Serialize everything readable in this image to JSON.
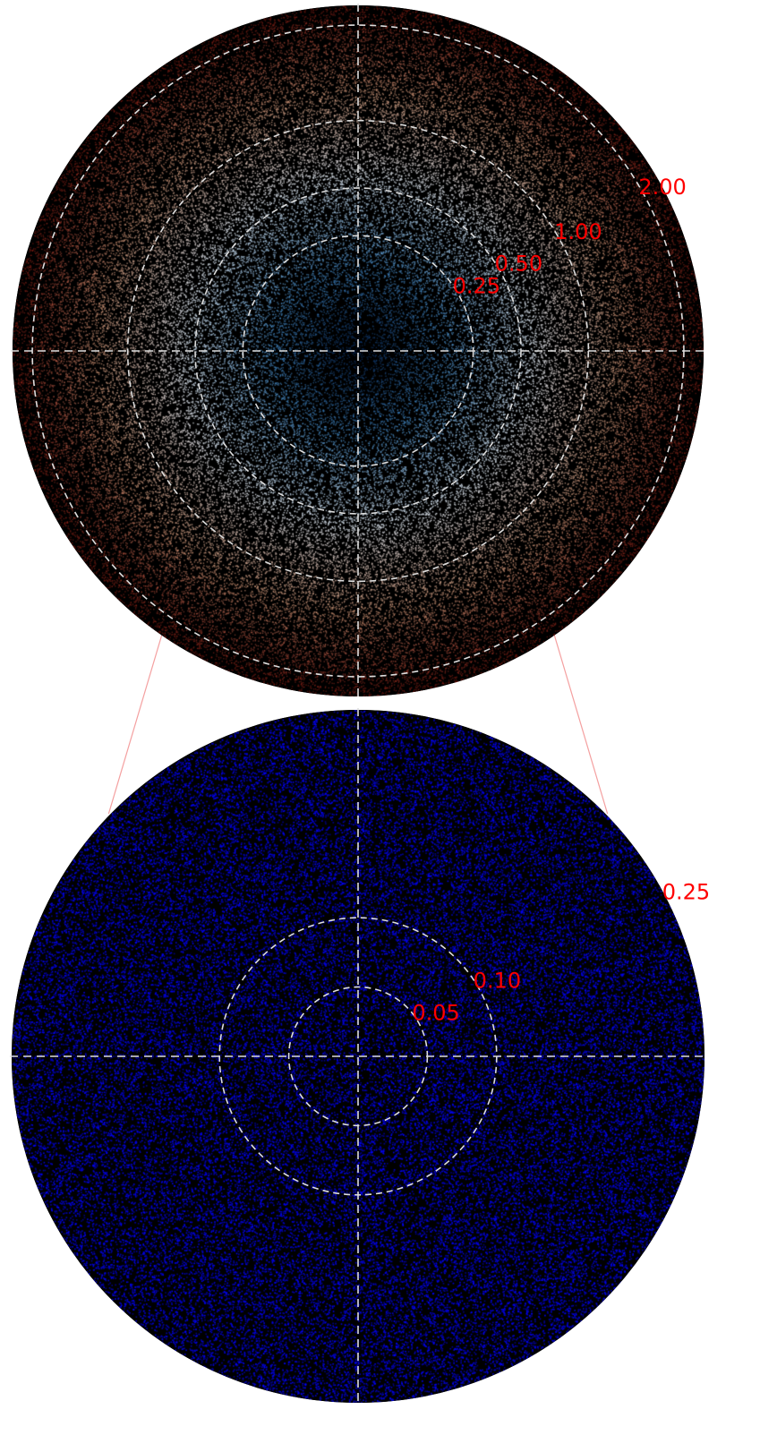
{
  "chart_data": [
    {
      "type": "scatter",
      "panel": "top",
      "title": "",
      "xlabel": "",
      "ylabel": "",
      "max_radius": 2.25,
      "ring_radii": [
        0.25,
        0.5,
        1.0,
        2.0
      ],
      "ring_labels": [
        "0.25",
        "0.50",
        "1.00",
        "2.00"
      ],
      "radial_scale": "sqrt",
      "point_colormap": "coolwarm (blue at center to white to red at rim)",
      "grid": "dashed circles and crosshair",
      "zoom_region_radius": 0.25
    },
    {
      "type": "scatter",
      "panel": "bottom",
      "title": "",
      "xlabel": "",
      "ylabel": "",
      "max_radius": 0.25,
      "ring_radii": [
        0.05,
        0.1,
        0.25
      ],
      "ring_labels": [
        "0.05",
        "0.10",
        "0.25"
      ],
      "radial_scale": "linear",
      "point_color": "blue",
      "grid": "dashed circles and crosshair"
    }
  ],
  "colors": {
    "background": "#000000",
    "ring": "#dddddd",
    "label": "#ff0000",
    "zoom_line": "#f4a0a0",
    "bottom_points": "#0000ff"
  }
}
